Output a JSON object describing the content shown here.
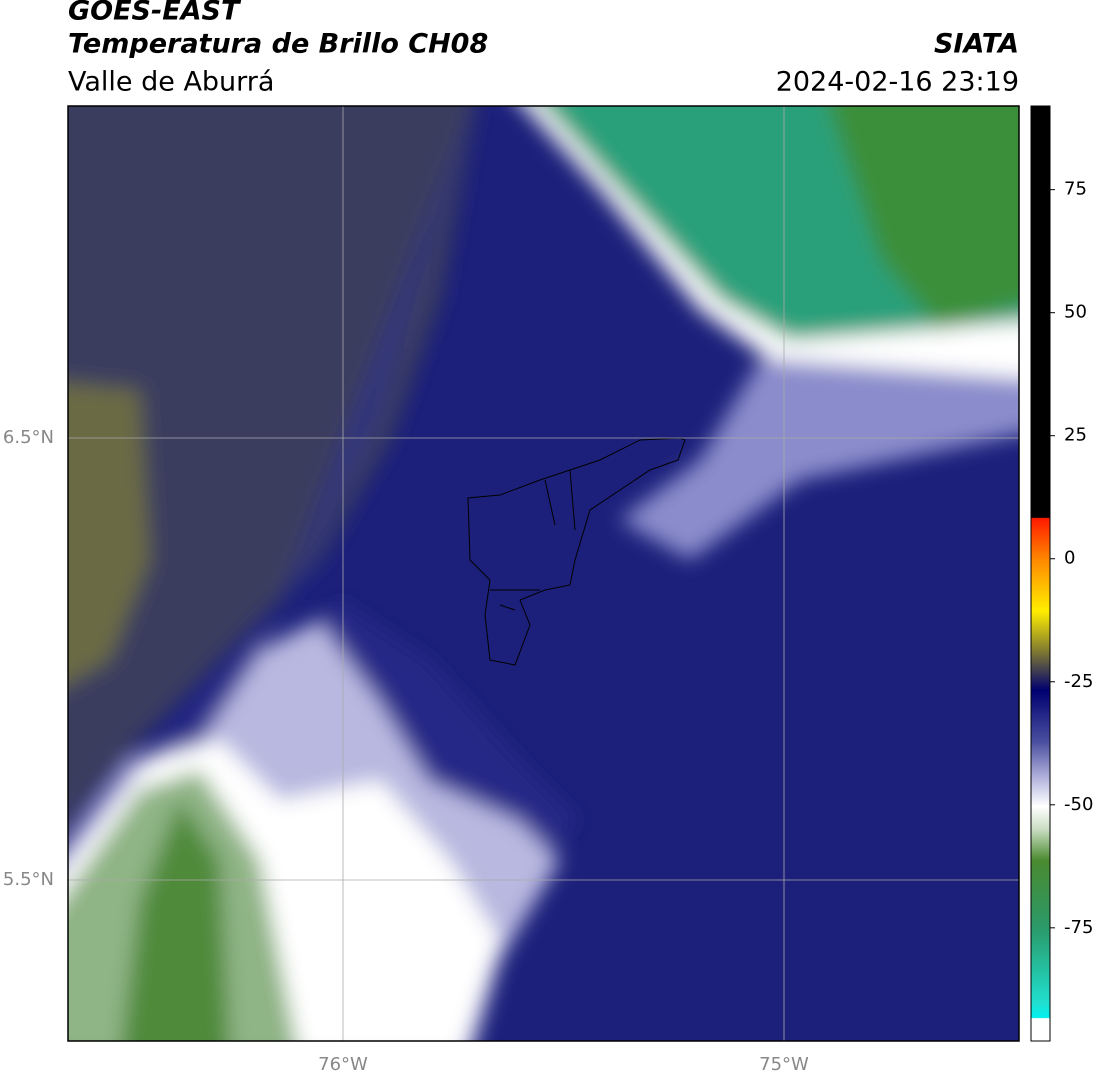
{
  "header": {
    "title": "GOES-EAST",
    "subtitle": "Temperatura de Brillo CH08",
    "region": "Valle de Aburrá",
    "source": "SIATA",
    "datetime": "2024-02-16 23:19"
  },
  "map": {
    "lat_labels": [
      "6.5°N",
      "5.5°N"
    ],
    "lon_labels": [
      "76°W",
      "75°W"
    ]
  },
  "colorbar": {
    "lim": [
      -98,
      92
    ],
    "ticks": [
      75,
      50,
      25,
      0,
      -25,
      -50,
      -75
    ]
  }
}
